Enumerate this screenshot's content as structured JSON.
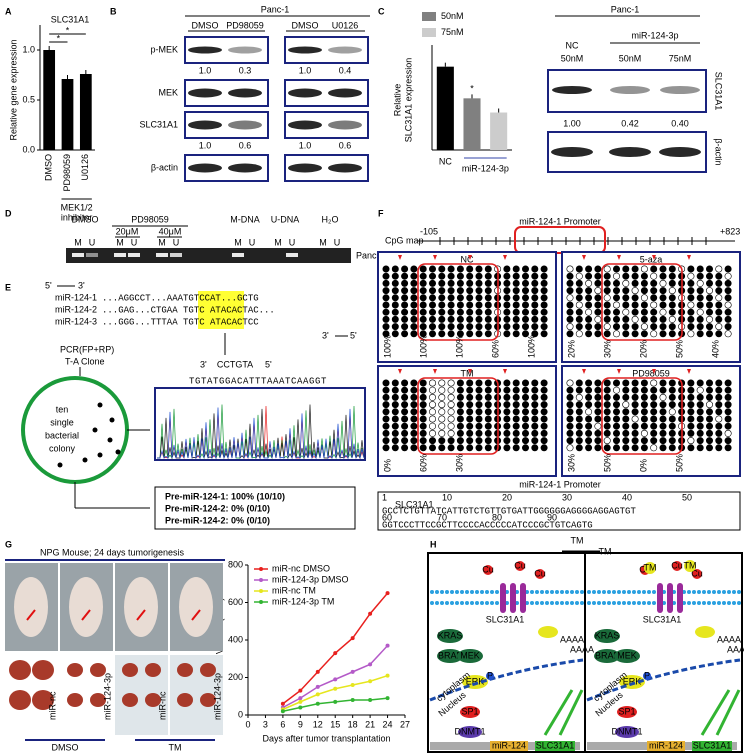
{
  "panel_letters": [
    "A",
    "B",
    "C",
    "D",
    "E",
    "F",
    "G",
    "H"
  ],
  "chart_data": [
    {
      "type": "bar",
      "title": "SLC31A1",
      "ylabel": "Relative gene expression",
      "categories": [
        "DMSO",
        "PD98059",
        "U0126"
      ],
      "values": [
        1.0,
        0.71,
        0.76
      ],
      "color": "#000000",
      "ylim": [
        0,
        1.2
      ],
      "yticks": [
        {
          "value": 0,
          "label": "0.0"
        },
        {
          "value": 0.5,
          "label": "0.5"
        },
        {
          "value": 1,
          "label": "1.0"
        }
      ],
      "group_label": [
        "MEK1/2",
        "inhibitor"
      ],
      "annotations": [
        "*",
        "*"
      ]
    },
    {
      "type": "bar",
      "ylabel": [
        "Relative",
        "SLC31A1 expression"
      ],
      "categories": [
        "NC",
        null,
        null
      ],
      "values": [
        1.0,
        0.62,
        0.45
      ],
      "colors": [
        "#000000",
        "#808080",
        "#cccccc"
      ],
      "ylim": [
        0,
        1.2
      ],
      "group_label": [
        "miR-124-3p"
      ],
      "legend": [
        {
          "name": "50nM",
          "color": "#808080"
        },
        {
          "name": "75nM",
          "color": "#cccccc"
        }
      ],
      "annotations": [
        "*"
      ]
    },
    {
      "type": "line",
      "xlabel": "Days after tumor transplantation",
      "ylabel": "Tumor Volume (mm³)",
      "x": [
        6,
        9,
        12,
        15,
        18,
        21,
        24
      ],
      "xlim": [
        0,
        27
      ],
      "xticks": [
        0,
        3,
        6,
        9,
        12,
        15,
        18,
        21,
        24,
        27
      ],
      "ylim": [
        0,
        800
      ],
      "yticks": [
        0,
        200,
        400,
        600,
        800
      ],
      "legend_corner": "upper left",
      "series": [
        {
          "name": "miR-nc DMSO",
          "color": "#e8201e",
          "values": [
            60,
            130,
            230,
            330,
            410,
            540,
            650
          ]
        },
        {
          "name": "miR-124-3p DMSO",
          "color": "#b45ac8",
          "values": [
            40,
            90,
            150,
            190,
            230,
            270,
            370
          ]
        },
        {
          "name": "miR-nc TM",
          "color": "#e6e61e",
          "values": [
            30,
            70,
            110,
            140,
            160,
            180,
            210
          ]
        },
        {
          "name": "miR-124-3p TM",
          "color": "#32b432",
          "values": [
            20,
            40,
            60,
            70,
            80,
            80,
            90
          ]
        }
      ]
    }
  ],
  "blot_b": {
    "cell": "Panc-1",
    "lanes": [
      "DMSO",
      "PD98059",
      "DMSO",
      "U0126"
    ],
    "rows": [
      "p-MEK",
      "MEK",
      "SLC31A1",
      "β-actin"
    ],
    "quant_pmek": [
      "1.0",
      "0.3",
      "1.0",
      "0.4"
    ],
    "quant_slc": [
      "1.0",
      "0.6",
      "1.0",
      "0.6"
    ]
  },
  "blot_c": {
    "cell": "Panc-1",
    "nc": "NC",
    "group": "miR-124-3p",
    "doses": [
      "50nM",
      "50nM",
      "75nM"
    ],
    "rows": [
      "SLC31A1",
      "β-actin"
    ],
    "quant": [
      "1.00",
      "0.42",
      "0.40"
    ]
  },
  "gel_d": {
    "groups": [
      "DMSO",
      "PD98059",
      "M-DNA",
      "U-DNA",
      "H₂O"
    ],
    "doses": [
      "20μM",
      "40μM"
    ],
    "lane_m": "M",
    "lane_u": "U",
    "cell": "Panc-1"
  },
  "panel_e": {
    "end5": "5'",
    "end3": "3'",
    "names": [
      "miR-124-1",
      "miR-124-2",
      "miR-124-3"
    ],
    "seqs": [
      "...AGGCCT...AAATGTCCAT...GCTG",
      "...GAG...CTGAA TGTC ATACACTAC...",
      "...GGG...TTTAA TGTC ATACACTCC"
    ],
    "steps": [
      "PCR(FP+RP)",
      "T-A Clone"
    ],
    "colony": [
      "ten",
      "single",
      "bacterial",
      "colony"
    ],
    "primer": "CCTGTA",
    "read": "TGTATGGACATTTAAATCAAGGT",
    "results": [
      "Pre-miR-124-1: 100% (10/10)",
      "Pre-miR-124-2: 0% (0/10)",
      "Pre-miR-124-2: 0% (0/10)"
    ]
  },
  "panel_f": {
    "title": "miR-124-1 Promoter",
    "cpg": "CpG map",
    "start": "-105",
    "end": "+823",
    "samples": [
      {
        "name": "NC",
        "pct": [
          "100%",
          "100%",
          "100%",
          "60%",
          "100%"
        ]
      },
      {
        "name": "5-aza",
        "pct": [
          "20%",
          "30%",
          "20%",
          "50%",
          "40%"
        ]
      },
      {
        "name": "TM",
        "pct": [
          "0%",
          "60%",
          "30%"
        ]
      },
      {
        "name": "PD98059",
        "pct": [
          "30%",
          "50%",
          "0%",
          "50%"
        ]
      }
    ],
    "seq_title": "miR-124-1 Promoter",
    "gene": "SLC31A1",
    "nums1": [
      "1",
      "10",
      "20",
      "30",
      "40",
      "50"
    ],
    "seq1": "GCCTCTGTTATCATTGTCTGTTGTGATTGGGGGGAGGGGAGGAGTGT",
    "nums2": [
      "60",
      "70",
      "80",
      "90"
    ],
    "seq2": "GGTCCCTTCCGCTTCCCCACCCCCATCCCGCTGTCAGTG"
  },
  "panel_g": {
    "title": "NPG Mouse; 24 days tumorigenesis",
    "tumors": [
      "miR-nc",
      "miR-124-3p",
      "miR-nc",
      "miR-124-3p"
    ],
    "groups": [
      "DMSO",
      "TM"
    ]
  },
  "panel_h": {
    "drug": "TM",
    "ion": "Cu",
    "phos": "P",
    "tail": "AAAA",
    "gene": "SLC31A1",
    "kinases": [
      "KRAS",
      "BRAF",
      "MEK",
      "ERK"
    ],
    "tf": "SP1",
    "dnmt": "DNMT1",
    "cyto": "cytoplasm",
    "nuc": "Nucleus",
    "mir": "miR-124",
    "target": "SLC31A1"
  }
}
